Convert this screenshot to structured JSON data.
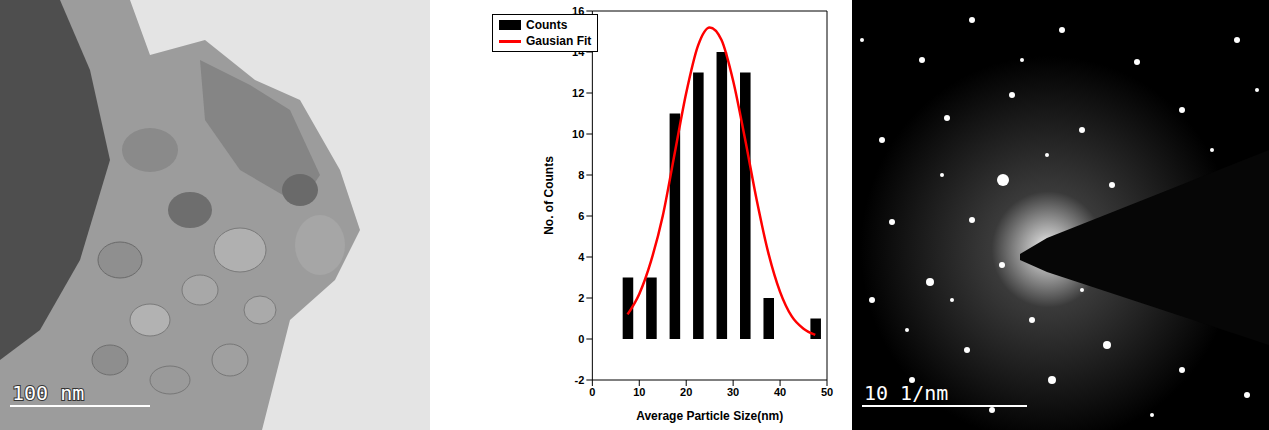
{
  "tem_image": {
    "scale_bar": "100 nm"
  },
  "chart_data": {
    "type": "histogram",
    "x_label": "Average Particle Size(nm)",
    "y_label": "No. of Counts",
    "bins": [
      5,
      10,
      15,
      20,
      25,
      30,
      35,
      40,
      45,
      50
    ],
    "series": [
      {
        "name": "Counts",
        "type": "bar",
        "color": "#000000",
        "values": [
          3,
          3,
          11,
          13,
          14,
          13,
          2,
          0,
          1
        ]
      },
      {
        "name": "Gausian Fit",
        "type": "line",
        "color": "#ff0000",
        "x": [
          7.5,
          10,
          12.5,
          15,
          17.5,
          20,
          22.5,
          25,
          27.5,
          30,
          32.5,
          35,
          37.5,
          40,
          42.5,
          45,
          47.5
        ],
        "values": [
          1.2,
          2.2,
          3.8,
          6.0,
          9.0,
          12.0,
          14.3,
          15.2,
          14.6,
          12.6,
          9.8,
          6.8,
          4.2,
          2.3,
          1.1,
          0.5,
          0.2
        ]
      }
    ],
    "xlim": [
      0,
      50
    ],
    "ylim": [
      -2,
      16
    ],
    "xticks": [
      0,
      10,
      20,
      30,
      40,
      50
    ],
    "yticks": [
      -2,
      0,
      2,
      4,
      6,
      8,
      10,
      12,
      14,
      16
    ],
    "legend": "top-left",
    "grid": false
  },
  "diffraction_image": {
    "scale_bar": "10 1/nm"
  }
}
